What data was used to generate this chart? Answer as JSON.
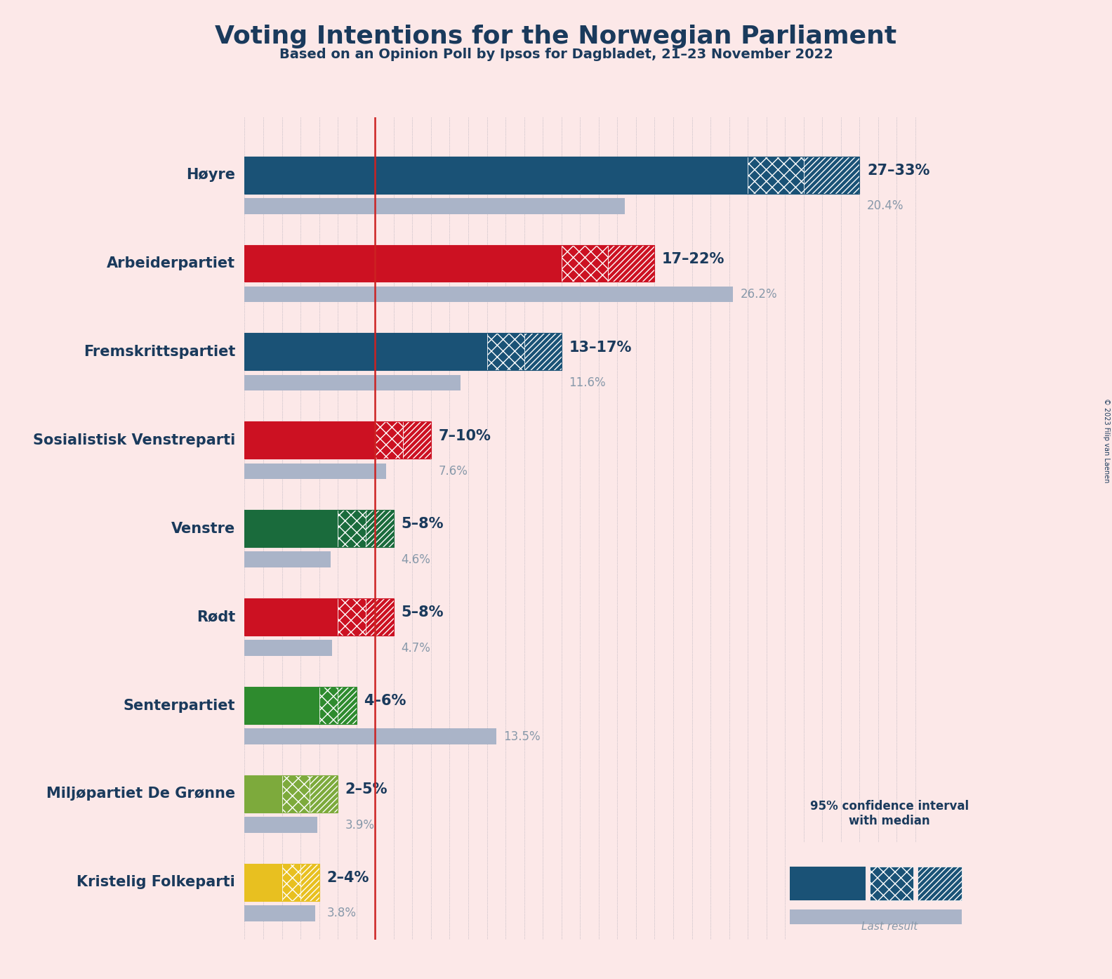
{
  "title": "Voting Intentions for the Norwegian Parliament",
  "subtitle": "Based on an Opinion Poll by Ipsos for Dagbladet, 21–23 November 2022",
  "copyright": "© 2023 Filip van Laenen",
  "background_color": "#fce8e8",
  "parties": [
    {
      "name": "Høyre",
      "ci_low": 27,
      "ci_high": 33,
      "median": 30,
      "last_result": 20.4,
      "color": "#1a5276",
      "label": "27–33%",
      "last_label": "20.4%"
    },
    {
      "name": "Arbeiderpartiet",
      "ci_low": 17,
      "ci_high": 22,
      "median": 19.5,
      "last_result": 26.2,
      "color": "#cc1122",
      "label": "17–22%",
      "last_label": "26.2%"
    },
    {
      "name": "Fremskrittspartiet",
      "ci_low": 13,
      "ci_high": 17,
      "median": 15,
      "last_result": 11.6,
      "color": "#1a5276",
      "label": "13–17%",
      "last_label": "11.6%"
    },
    {
      "name": "Sosialistisk Venstreparti",
      "ci_low": 7,
      "ci_high": 10,
      "median": 8.5,
      "last_result": 7.6,
      "color": "#cc1122",
      "label": "7–10%",
      "last_label": "7.6%"
    },
    {
      "name": "Venstre",
      "ci_low": 5,
      "ci_high": 8,
      "median": 6.5,
      "last_result": 4.6,
      "color": "#1a6b3c",
      "label": "5–8%",
      "last_label": "4.6%"
    },
    {
      "name": "Rødt",
      "ci_low": 5,
      "ci_high": 8,
      "median": 6.5,
      "last_result": 4.7,
      "color": "#cc1122",
      "label": "5–8%",
      "last_label": "4.7%"
    },
    {
      "name": "Senterpartiet",
      "ci_low": 4,
      "ci_high": 6,
      "median": 5,
      "last_result": 13.5,
      "color": "#2e8b2e",
      "label": "4–6%",
      "last_label": "13.5%"
    },
    {
      "name": "Miljøpartiet De Grønne",
      "ci_low": 2,
      "ci_high": 5,
      "median": 3.5,
      "last_result": 3.9,
      "color": "#7daa3c",
      "label": "2–5%",
      "last_label": "3.9%"
    },
    {
      "name": "Kristelig Folkeparti",
      "ci_low": 2,
      "ci_high": 4,
      "median": 3,
      "last_result": 3.8,
      "color": "#e8c020",
      "label": "2–4%",
      "last_label": "3.8%"
    }
  ],
  "median_line_x": 7,
  "xlim": [
    0,
    37
  ],
  "title_color": "#1a3a5c",
  "last_result_color": "#aab4c8",
  "red_line_color": "#cc2222",
  "tick_color": "#1a3a5c"
}
